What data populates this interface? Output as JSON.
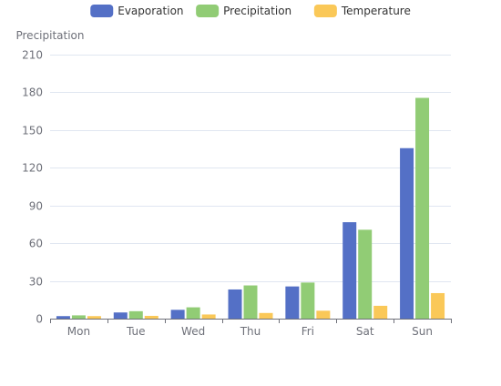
{
  "chart_data": {
    "type": "bar",
    "categories": [
      "Mon",
      "Tue",
      "Wed",
      "Thu",
      "Fri",
      "Sat",
      "Sun"
    ],
    "series": [
      {
        "name": "Evaporation",
        "color": "#5470c6",
        "values": [
          2.0,
          4.9,
          7.0,
          23.2,
          25.6,
          76.7,
          135.6
        ]
      },
      {
        "name": "Precipitation",
        "color": "#91cc75",
        "values": [
          2.6,
          5.9,
          9.0,
          26.4,
          28.7,
          70.7,
          175.6
        ]
      },
      {
        "name": "Temperature",
        "color": "#fac858",
        "values": [
          2.0,
          2.2,
          3.3,
          4.5,
          6.3,
          10.2,
          20.3
        ]
      }
    ],
    "ylabel": "Precipitation",
    "xlabel": "",
    "ylim": [
      0,
      210
    ],
    "yticks": [
      0,
      30,
      60,
      90,
      120,
      150,
      180,
      210
    ],
    "grid": true,
    "legend_position": "top-center",
    "colors": {
      "axis": "#6e7079",
      "grid": "#e0e6f1",
      "label": "#6e7079",
      "legend_text": "#333333"
    }
  }
}
